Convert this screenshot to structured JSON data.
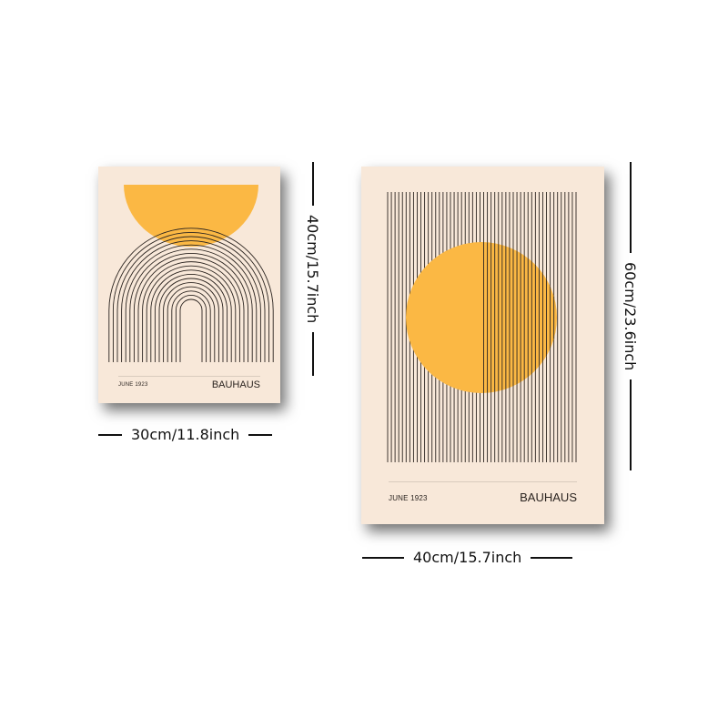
{
  "colors": {
    "paper": "#f8e8d9",
    "accent_yellow": "#fbb844",
    "line": "#2b2420"
  },
  "small_poster": {
    "date_label": "JUNE 1923",
    "brand": "BAUHAUS",
    "width_label": "30cm/11.8inch",
    "height_label": "40cm/15.7inch"
  },
  "large_poster": {
    "date_label": "JUNE 1923",
    "brand": "BAUHAUS",
    "width_label": "40cm/15.7inch",
    "height_label": "60cm/23.6inch"
  }
}
